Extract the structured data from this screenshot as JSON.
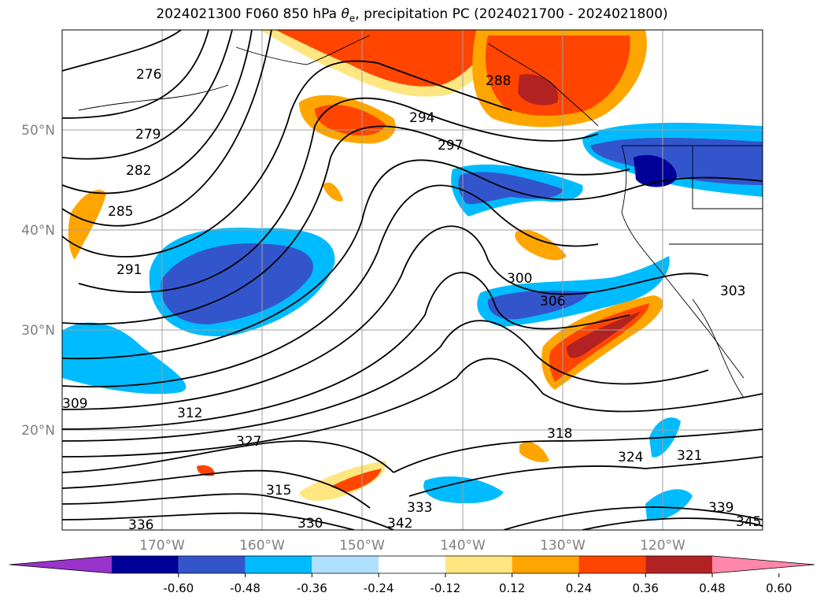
{
  "chart_data": {
    "type": "contour map",
    "title_main": "2024021300 F060 850 hPa ",
    "title_symbol": "θ",
    "title_subscript": "e",
    "title_rest": ", precipitation PC (2024021700 - 2024021800)",
    "lon_ticks": [
      "170°W",
      "160°W",
      "150°W",
      "140°W",
      "130°W",
      "120°W"
    ],
    "lat_ticks": [
      "50°N",
      "40°N",
      "30°N",
      "20°N"
    ],
    "grid": true,
    "theta_e_contour_labels": [
      "276",
      "279",
      "282",
      "285",
      "288",
      "291",
      "294",
      "297",
      "300",
      "303",
      "306",
      "309",
      "312",
      "315",
      "318",
      "321",
      "324",
      "327",
      "330",
      "333",
      "336",
      "339",
      "342",
      "345"
    ],
    "colorbar": {
      "orientation": "horizontal",
      "extend": "both",
      "boundaries": [
        "-0.60",
        "-0.48",
        "-0.36",
        "-0.24",
        "-0.12",
        "0.12",
        "0.24",
        "0.36",
        "0.48",
        "0.60"
      ],
      "colors": [
        "#9933cc",
        "#000099",
        "#3355cc",
        "#00bbff",
        "#b0e0ff",
        "#ffffff",
        "#ffe680",
        "#ffa500",
        "#ff4500",
        "#b22222",
        "#ff88aa"
      ]
    }
  }
}
